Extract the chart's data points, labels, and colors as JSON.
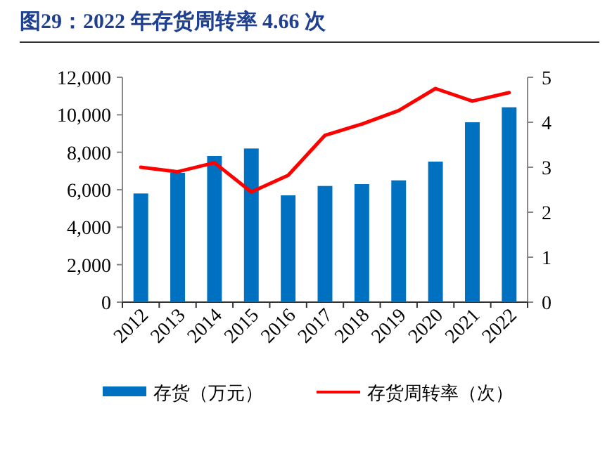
{
  "chart_data": {
    "type": "bar",
    "title": "图29：2022 年存货周转率 4.66 次",
    "categories": [
      "2012",
      "2013",
      "2014",
      "2015",
      "2016",
      "2017",
      "2018",
      "2019",
      "2020",
      "2021",
      "2022"
    ],
    "series": [
      {
        "name": "存货（万元）",
        "color": "#0070c0",
        "values": [
          5800,
          6900,
          7800,
          8200,
          5700,
          6200,
          6300,
          6500,
          7500,
          9600,
          10400
        ]
      },
      {
        "name": "存货周转率（次）",
        "type": "line",
        "axis": "y2",
        "color": "#ff0000",
        "values": [
          3.0,
          2.9,
          3.1,
          2.45,
          2.82,
          3.71,
          3.96,
          4.26,
          4.75,
          4.47,
          4.66
        ]
      }
    ],
    "ylim": [
      0,
      12000
    ],
    "yticks": [
      {
        "value": 0,
        "label": "0"
      },
      {
        "value": 2000,
        "label": "2,000"
      },
      {
        "value": 4000,
        "label": "4,000"
      },
      {
        "value": 6000,
        "label": "6,000"
      },
      {
        "value": 8000,
        "label": "8,000"
      },
      {
        "value": 10000,
        "label": "10,000"
      },
      {
        "value": 12000,
        "label": "12,000"
      }
    ],
    "y2lim": [
      0,
      5
    ],
    "y2ticks": [
      0,
      1,
      2,
      3,
      4,
      5
    ],
    "legend": "bottom"
  }
}
